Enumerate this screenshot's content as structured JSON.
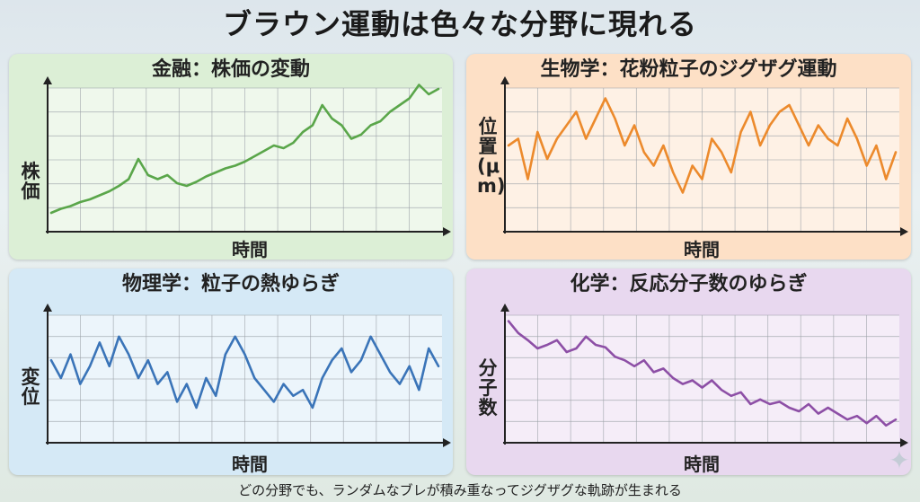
{
  "title": "ブラウン運動は色々な分野に現れる",
  "caption": "どの分野でも、ランダムなブレが積み重なってジグザグな軌跡が生まれる",
  "colors": {
    "finance_bg": "#dcefd6",
    "finance_line": "#5aa64a",
    "biology_bg": "#fde0c6",
    "biology_line": "#ec8a2c",
    "physics_bg": "#d5e9f6",
    "physics_line": "#3a74b8",
    "chemistry_bg": "#e8d8ef",
    "chemistry_line": "#8d4fa6"
  },
  "panels": [
    {
      "title": "金融：株価の変動",
      "xlabel": "時間",
      "ylabel": "株価"
    },
    {
      "title": "生物学：花粉粒子のジグザグ運動",
      "xlabel": "時間",
      "ylabel": "位置(μm)"
    },
    {
      "title": "物理学：粒子の熱ゆらぎ",
      "xlabel": "時間",
      "ylabel": "変位"
    },
    {
      "title": "化学：反応分子数のゆらぎ",
      "xlabel": "時間",
      "ylabel": "分子数"
    }
  ],
  "chart_data": [
    {
      "type": "line",
      "title": "金融：株価の変動",
      "xlabel": "時間",
      "ylabel": "株価",
      "xlim": [
        0,
        40
      ],
      "ylim": [
        0,
        10
      ],
      "grid": true,
      "x": [
        0,
        1,
        2,
        3,
        4,
        5,
        6,
        7,
        8,
        9,
        10,
        11,
        12,
        13,
        14,
        15,
        16,
        17,
        18,
        19,
        20,
        21,
        22,
        23,
        24,
        25,
        26,
        27,
        28,
        29,
        30,
        31,
        32,
        33,
        34,
        35,
        36,
        37,
        38,
        39,
        40
      ],
      "values": [
        1.0,
        1.3,
        1.5,
        1.8,
        2.0,
        2.3,
        2.6,
        3.0,
        3.5,
        5.0,
        3.8,
        3.5,
        3.8,
        3.2,
        3.0,
        3.3,
        3.7,
        4.0,
        4.3,
        4.5,
        4.8,
        5.2,
        5.6,
        6.0,
        5.8,
        6.2,
        7.0,
        7.5,
        9.0,
        8.0,
        7.5,
        6.5,
        6.8,
        7.5,
        7.8,
        8.5,
        9.0,
        9.5,
        10.5,
        9.8,
        10.2
      ]
    },
    {
      "type": "line",
      "title": "生物学：花粉粒子のジグザグ運動",
      "xlabel": "時間",
      "ylabel": "位置(μm)",
      "xlim": [
        0,
        40
      ],
      "ylim": [
        0,
        10
      ],
      "grid": true,
      "x": [
        0,
        1,
        2,
        3,
        4,
        5,
        6,
        7,
        8,
        9,
        10,
        11,
        12,
        13,
        14,
        15,
        16,
        17,
        18,
        19,
        20,
        21,
        22,
        23,
        24,
        25,
        26,
        27,
        28,
        29,
        30,
        31,
        32,
        33,
        34,
        35,
        36,
        37,
        38,
        39,
        40
      ],
      "values": [
        6.0,
        6.5,
        3.5,
        7.0,
        5.0,
        6.5,
        7.5,
        8.5,
        6.5,
        8.0,
        9.5,
        8.0,
        6.0,
        7.5,
        5.5,
        4.5,
        6.0,
        4.0,
        2.5,
        4.5,
        3.5,
        6.5,
        5.5,
        4.0,
        7.0,
        8.5,
        6.0,
        7.5,
        8.5,
        9.0,
        7.5,
        6.0,
        7.5,
        6.5,
        6.0,
        8.0,
        6.5,
        4.5,
        6.0,
        3.5,
        5.5
      ]
    },
    {
      "type": "line",
      "title": "物理学：粒子の熱ゆらぎ",
      "xlabel": "時間",
      "ylabel": "変位",
      "xlim": [
        0,
        40
      ],
      "ylim": [
        0,
        10
      ],
      "grid": true,
      "x": [
        0,
        1,
        2,
        3,
        4,
        5,
        6,
        7,
        8,
        9,
        10,
        11,
        12,
        13,
        14,
        15,
        16,
        17,
        18,
        19,
        20,
        21,
        22,
        23,
        24,
        25,
        26,
        27,
        28,
        29,
        30,
        31,
        32,
        33,
        34,
        35,
        36,
        37,
        38,
        39,
        40
      ],
      "values": [
        6.5,
        5.0,
        7.0,
        4.5,
        6.0,
        8.0,
        6.0,
        8.5,
        7.0,
        5.0,
        6.5,
        4.5,
        5.5,
        3.0,
        4.5,
        2.5,
        5.0,
        3.5,
        7.0,
        8.5,
        7.0,
        5.0,
        4.0,
        3.0,
        4.5,
        3.5,
        4.0,
        2.5,
        5.0,
        6.5,
        7.5,
        5.5,
        6.5,
        8.5,
        7.0,
        5.5,
        4.5,
        6.0,
        4.0,
        7.5,
        6.0
      ]
    },
    {
      "type": "line",
      "title": "化学：反応分子数のゆらぎ",
      "xlabel": "時間",
      "ylabel": "分子数",
      "xlim": [
        0,
        40
      ],
      "ylim": [
        0,
        10
      ],
      "grid": true,
      "x": [
        0,
        1,
        2,
        3,
        4,
        5,
        6,
        7,
        8,
        9,
        10,
        11,
        12,
        13,
        14,
        15,
        16,
        17,
        18,
        19,
        20,
        21,
        22,
        23,
        24,
        25,
        26,
        27,
        28,
        29,
        30,
        31,
        32,
        33,
        34,
        35,
        36,
        37,
        38,
        39,
        40
      ],
      "values": [
        9.8,
        8.8,
        8.2,
        7.5,
        7.8,
        8.2,
        7.2,
        7.5,
        8.5,
        7.8,
        7.6,
        6.8,
        6.5,
        6.0,
        6.5,
        5.5,
        5.8,
        5.0,
        4.5,
        4.8,
        4.2,
        4.8,
        4.0,
        3.5,
        3.8,
        2.8,
        3.2,
        2.8,
        3.0,
        2.5,
        2.2,
        2.8,
        2.0,
        2.5,
        2.0,
        1.5,
        1.8,
        1.2,
        1.8,
        1.0,
        1.5
      ]
    }
  ]
}
